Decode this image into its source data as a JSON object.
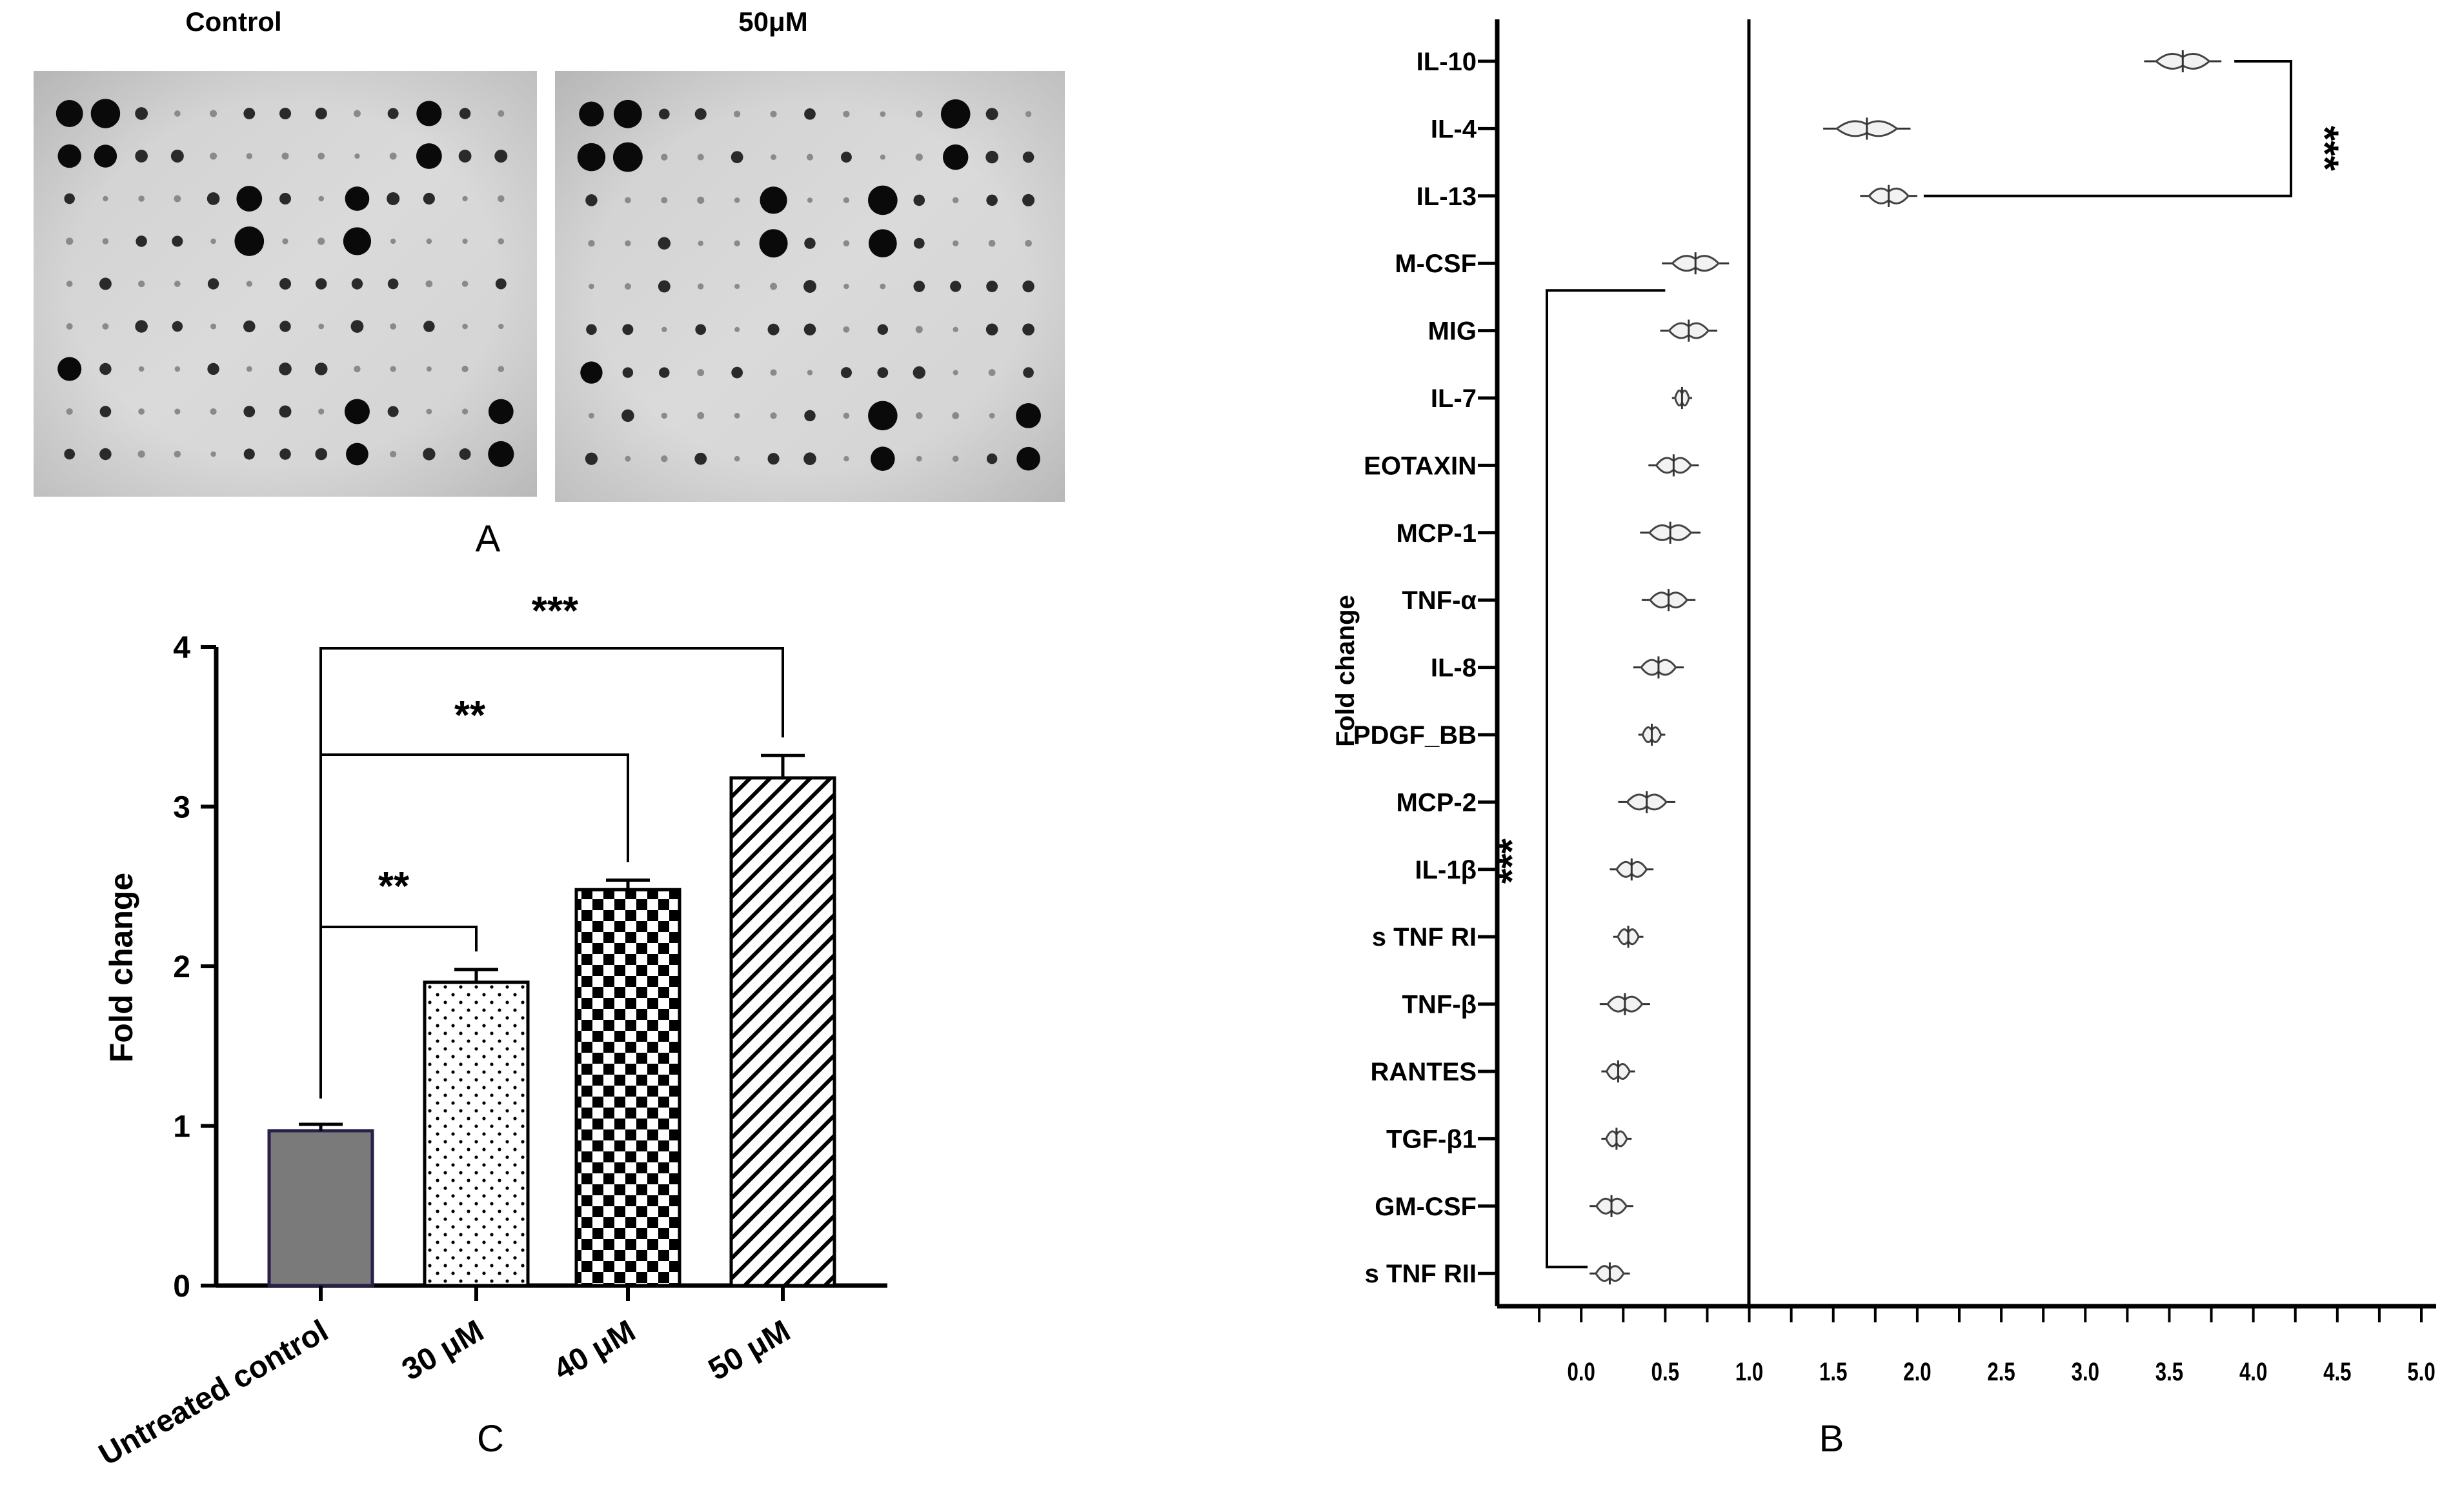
{
  "panel_a": {
    "blot_titles": [
      "Control",
      "50μM"
    ],
    "letter": "A"
  },
  "panel_b_letter": "B",
  "panel_c_letter": "C",
  "chart_data": [
    {
      "type": "bar",
      "panel": "C",
      "categories": [
        "Untreated control",
        "30 μM",
        "40 μM",
        "50 μM"
      ],
      "values": [
        0.97,
        1.9,
        2.48,
        3.18
      ],
      "errors": [
        0.04,
        0.08,
        0.06,
        0.14
      ],
      "patterns": [
        "solid-gray",
        "dots",
        "checker",
        "diagonal-hatch"
      ],
      "ylabel": "Fold change",
      "ylim": [
        0,
        4
      ],
      "yticks": [
        0,
        1,
        2,
        3,
        4
      ],
      "significance": [
        {
          "from": 0,
          "to": 1,
          "label": "**"
        },
        {
          "from": 0,
          "to": 2,
          "label": "**"
        },
        {
          "from": 0,
          "to": 3,
          "label": "***"
        }
      ],
      "colors": {
        "solid": "#7a7a7a",
        "outline": "#2a1f4a",
        "ink": "#000000"
      }
    },
    {
      "type": "scatter",
      "panel": "B",
      "orientation": "horizontal",
      "categories": [
        "IL-10",
        "IL-4",
        "IL-13",
        "M-CSF",
        "MIG",
        "IL-7",
        "EOTAXIN",
        "MCP-1",
        "TNF-α",
        "IL-8",
        "PDGF_BB",
        "MCP-2",
        "IL-1β",
        "s TNF RI",
        "TNF-β",
        "RANTES",
        "TGF-β1",
        "GM-CSF",
        "s TNF RII"
      ],
      "values": [
        3.58,
        1.7,
        1.83,
        0.68,
        0.64,
        0.6,
        0.55,
        0.53,
        0.52,
        0.46,
        0.42,
        0.39,
        0.3,
        0.28,
        0.26,
        0.22,
        0.21,
        0.18,
        0.17
      ],
      "spread": [
        0.23,
        0.26,
        0.17,
        0.2,
        0.17,
        0.06,
        0.15,
        0.18,
        0.16,
        0.15,
        0.08,
        0.17,
        0.13,
        0.09,
        0.15,
        0.1,
        0.09,
        0.13,
        0.12
      ],
      "ylabel": "Fold change",
      "xlim": [
        -0.5,
        5.0
      ],
      "xticks": [
        "0.0",
        "0.5",
        "1.0",
        "1.5",
        "2.0",
        "2.5",
        "3.0",
        "3.5",
        "4.0",
        "4.5",
        "5.0"
      ],
      "reference_line_x": 1.0,
      "significance": [
        {
          "from": 0,
          "to": 2,
          "label": "***"
        },
        {
          "from": 3,
          "to": 18,
          "label": "***"
        }
      ]
    }
  ]
}
